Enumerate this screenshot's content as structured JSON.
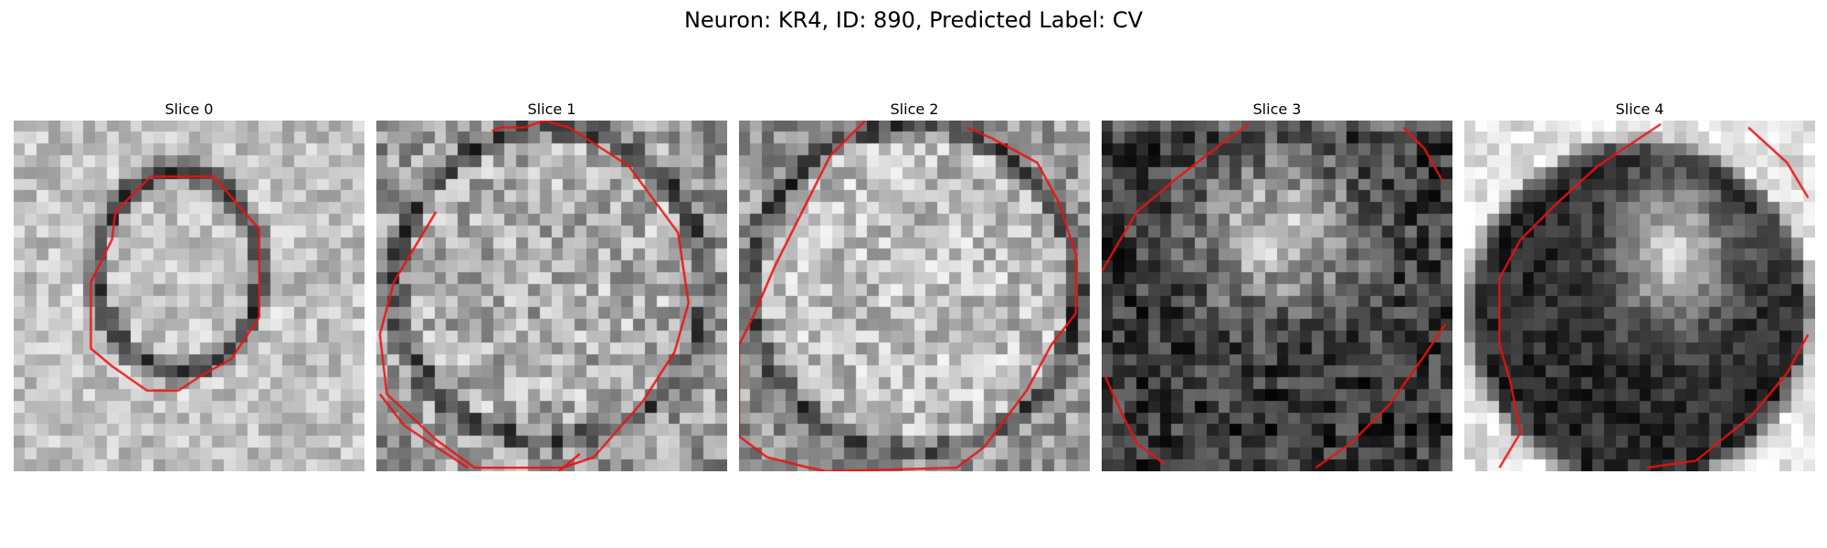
{
  "figure": {
    "title": "Neuron: KR4, ID: 890, Predicted Label: CV"
  },
  "contour_color": "#ee1111",
  "panels": [
    {
      "title": "Slice 0"
    },
    {
      "title": "Slice 1"
    },
    {
      "title": "Slice 2"
    },
    {
      "title": "Slice 3"
    },
    {
      "title": "Slice 4"
    }
  ]
}
